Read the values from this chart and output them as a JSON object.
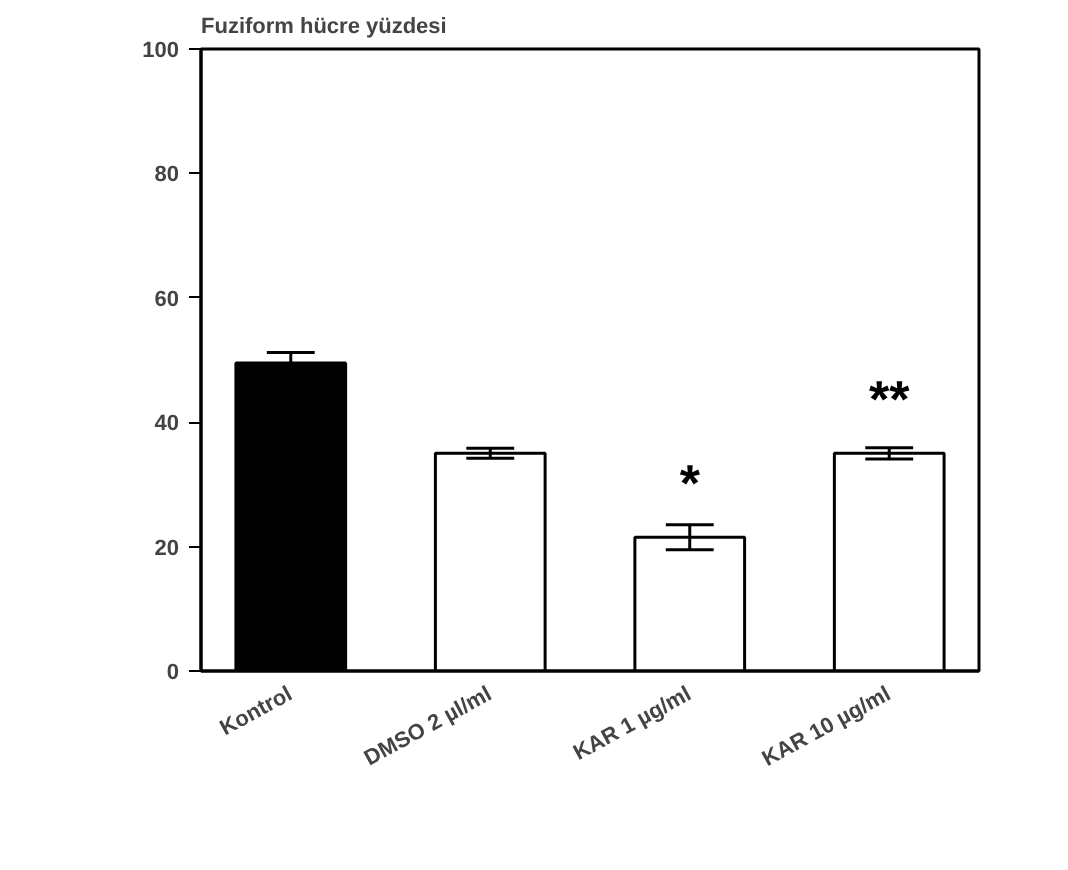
{
  "chart_data": {
    "type": "bar",
    "title": "Fuziform hücre yüzdesi",
    "categories": [
      "Kontrol",
      "DMSO 2 µl/ml",
      "KAR 1 µg/ml",
      "KAR 10 µg/ml"
    ],
    "values": [
      49.5,
      35,
      21.5,
      35
    ],
    "errors": [
      1.7,
      0.8,
      2,
      0.9
    ],
    "colors": [
      "#000000",
      "#ffffff",
      "#ffffff",
      "#ffffff"
    ],
    "ylim": [
      0,
      100
    ],
    "yticks": [
      0,
      20,
      40,
      60,
      80,
      100
    ],
    "grid": false,
    "annotations": [
      {
        "text": "*",
        "x": "KAR 1 µg/ml",
        "y": 21.5
      },
      {
        "text": "**",
        "x": "KAR 10 µg/ml",
        "y": 35
      }
    ]
  }
}
